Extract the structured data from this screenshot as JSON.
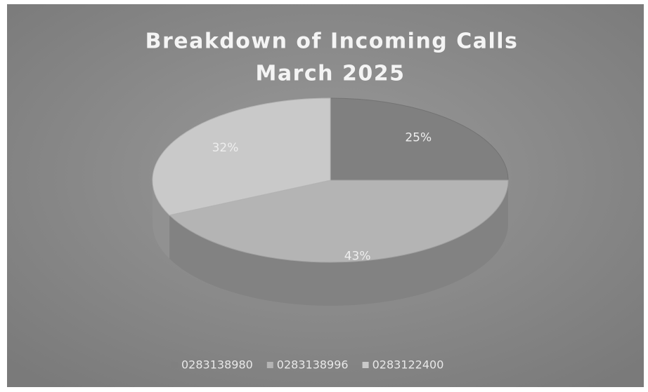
{
  "chart_data": {
    "type": "pie",
    "title": "Breakdown of Incoming Calls",
    "subtitle": "March 2025",
    "categories": [
      "0283138980",
      "0283138996",
      "0283122400"
    ],
    "values": [
      25,
      43,
      32
    ],
    "value_labels": [
      "25%",
      "43%",
      "32%"
    ],
    "colors": [
      "#808080",
      "#b4b4b4",
      "#c9c9c9"
    ],
    "legend": "bottom"
  }
}
